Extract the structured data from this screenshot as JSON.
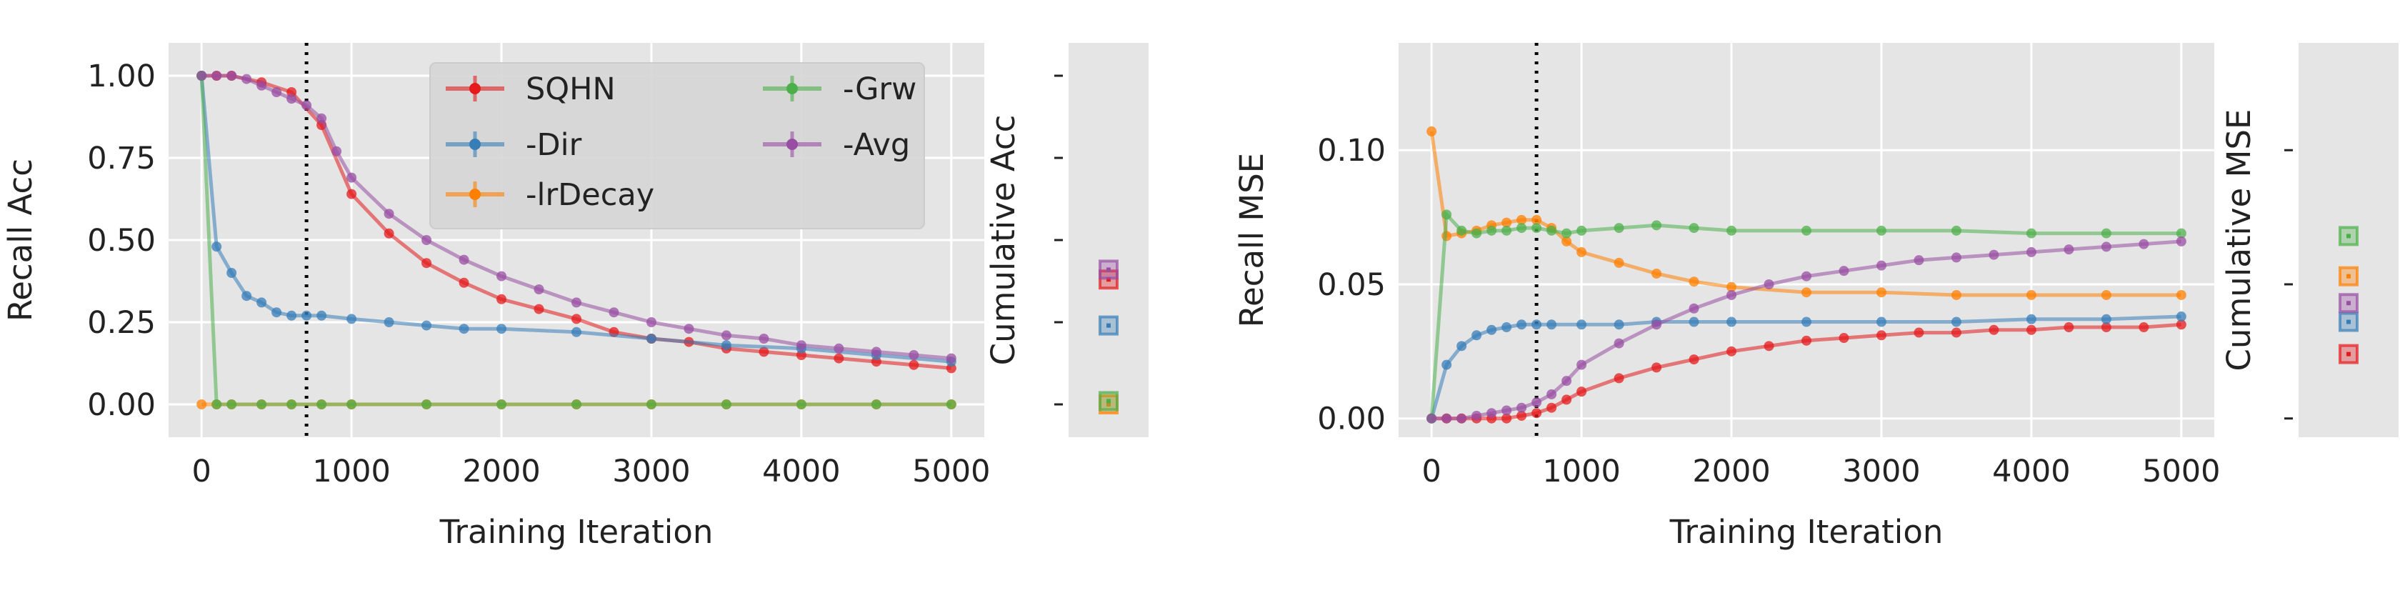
{
  "chart_data": [
    {
      "type": "line",
      "ylabel": "Recall Acc",
      "xlabel": "Training Iteration",
      "xlim": [
        -220,
        5220
      ],
      "ylim": [
        -0.1,
        1.1
      ],
      "xticks": [
        0,
        1000,
        2000,
        3000,
        4000,
        5000
      ],
      "xtick_labels": [
        "0",
        "1000",
        "2000",
        "3000",
        "4000",
        "5000"
      ],
      "yticks": [
        0.0,
        0.25,
        0.5,
        0.75,
        1.0
      ],
      "ytick_labels": [
        "0.00",
        "0.25",
        "0.50",
        "0.75",
        "1.00"
      ],
      "vline_x": 700,
      "grid": true,
      "legend": {
        "location": "top-right",
        "columns": 2
      },
      "cumulative_ylabel": "Cumulative Acc",
      "series": [
        {
          "name": "SQHN",
          "color": "#e41a1c",
          "x": [
            0,
            100,
            200,
            400,
            600,
            800,
            1000,
            1250,
            1500,
            1750,
            2000,
            2250,
            2500,
            2750,
            3000,
            3250,
            3500,
            3750,
            4000,
            4250,
            4500,
            4750,
            5000
          ],
          "values": [
            1.0,
            1.0,
            1.0,
            0.98,
            0.95,
            0.85,
            0.64,
            0.52,
            0.43,
            0.37,
            0.32,
            0.29,
            0.26,
            0.22,
            0.2,
            0.19,
            0.17,
            0.16,
            0.15,
            0.14,
            0.13,
            0.12,
            0.11
          ],
          "cumulative": 0.38
        },
        {
          "name": "-Dir",
          "color": "#377eb8",
          "x": [
            0,
            100,
            200,
            300,
            400,
            500,
            600,
            700,
            800,
            1000,
            1250,
            1500,
            1750,
            2000,
            2500,
            3000,
            3500,
            4000,
            4500,
            5000
          ],
          "values": [
            1.0,
            0.48,
            0.4,
            0.33,
            0.31,
            0.28,
            0.27,
            0.27,
            0.27,
            0.26,
            0.25,
            0.24,
            0.23,
            0.23,
            0.22,
            0.2,
            0.18,
            0.17,
            0.15,
            0.13
          ],
          "cumulative": 0.24
        },
        {
          "name": "-lrDecay",
          "color": "#ff7f00",
          "x": [
            0,
            100,
            200,
            400,
            600,
            800,
            1000,
            1500,
            2000,
            2500,
            3000,
            3500,
            4000,
            4500,
            5000
          ],
          "values": [
            0.0,
            0.0,
            0.0,
            0.0,
            0.0,
            0.0,
            0.0,
            0.0,
            0.0,
            0.0,
            0.0,
            0.0,
            0.0,
            0.0,
            0.0
          ],
          "cumulative": 0.0
        },
        {
          "name": "-Grw",
          "color": "#4daf4a",
          "x": [
            0,
            100,
            200,
            400,
            600,
            800,
            1000,
            1500,
            2000,
            2500,
            3000,
            3500,
            4000,
            4500,
            5000
          ],
          "values": [
            1.0,
            0.0,
            0.0,
            0.0,
            0.0,
            0.0,
            0.0,
            0.0,
            0.0,
            0.0,
            0.0,
            0.0,
            0.0,
            0.0,
            0.0
          ],
          "cumulative": 0.01
        },
        {
          "name": "-Avg",
          "color": "#984ea3",
          "x": [
            0,
            100,
            200,
            300,
            400,
            500,
            600,
            700,
            800,
            900,
            1000,
            1250,
            1500,
            1750,
            2000,
            2250,
            2500,
            2750,
            3000,
            3250,
            3500,
            3750,
            4000,
            4250,
            4500,
            4750,
            5000
          ],
          "values": [
            1.0,
            1.0,
            1.0,
            0.99,
            0.97,
            0.95,
            0.93,
            0.91,
            0.87,
            0.77,
            0.69,
            0.58,
            0.5,
            0.44,
            0.39,
            0.35,
            0.31,
            0.28,
            0.25,
            0.23,
            0.21,
            0.2,
            0.18,
            0.17,
            0.16,
            0.15,
            0.14
          ],
          "cumulative": 0.41
        }
      ]
    },
    {
      "type": "line",
      "ylabel": "Recall MSE",
      "xlabel": "Training Iteration",
      "xlim": [
        -220,
        5220
      ],
      "ylim": [
        -0.007,
        0.14
      ],
      "xticks": [
        0,
        1000,
        2000,
        3000,
        4000,
        5000
      ],
      "xtick_labels": [
        "0",
        "1000",
        "2000",
        "3000",
        "4000",
        "5000"
      ],
      "yticks": [
        0.0,
        0.05,
        0.1
      ],
      "ytick_labels": [
        "0.00",
        "0.05",
        "0.10"
      ],
      "vline_x": 700,
      "grid": true,
      "cumulative_ylabel": "Cumulative MSE",
      "series": [
        {
          "name": "SQHN",
          "color": "#e41a1c",
          "x": [
            0,
            100,
            200,
            300,
            400,
            500,
            600,
            700,
            800,
            900,
            1000,
            1250,
            1500,
            1750,
            2000,
            2250,
            2500,
            2750,
            3000,
            3250,
            3500,
            3750,
            4000,
            4250,
            4500,
            4750,
            5000
          ],
          "values": [
            0.0,
            0.0,
            0.0,
            0.0,
            0.0,
            0.0,
            0.001,
            0.002,
            0.004,
            0.007,
            0.01,
            0.015,
            0.019,
            0.022,
            0.025,
            0.027,
            0.029,
            0.03,
            0.031,
            0.032,
            0.032,
            0.033,
            0.033,
            0.034,
            0.034,
            0.034,
            0.035
          ],
          "cumulative": 0.024
        },
        {
          "name": "-Dir",
          "color": "#377eb8",
          "x": [
            0,
            100,
            200,
            300,
            400,
            500,
            600,
            700,
            800,
            1000,
            1250,
            1500,
            1750,
            2000,
            2500,
            3000,
            3500,
            4000,
            4500,
            5000
          ],
          "values": [
            0.0,
            0.02,
            0.027,
            0.031,
            0.033,
            0.034,
            0.035,
            0.035,
            0.035,
            0.035,
            0.035,
            0.036,
            0.036,
            0.036,
            0.036,
            0.036,
            0.036,
            0.037,
            0.037,
            0.038
          ],
          "cumulative": 0.036
        },
        {
          "name": "-lrDecay",
          "color": "#ff7f00",
          "x": [
            0,
            100,
            200,
            300,
            400,
            500,
            600,
            700,
            800,
            900,
            1000,
            1250,
            1500,
            1750,
            2000,
            2500,
            3000,
            3500,
            4000,
            4500,
            5000
          ],
          "values": [
            0.107,
            0.068,
            0.069,
            0.07,
            0.072,
            0.073,
            0.074,
            0.074,
            0.071,
            0.066,
            0.062,
            0.058,
            0.054,
            0.051,
            0.049,
            0.047,
            0.047,
            0.046,
            0.046,
            0.046,
            0.046
          ],
          "cumulative": 0.053
        },
        {
          "name": "-Grw",
          "color": "#4daf4a",
          "x": [
            0,
            100,
            200,
            300,
            400,
            500,
            600,
            700,
            800,
            900,
            1000,
            1250,
            1500,
            1750,
            2000,
            2500,
            3000,
            3500,
            4000,
            4500,
            5000
          ],
          "values": [
            0.0,
            0.076,
            0.07,
            0.069,
            0.07,
            0.07,
            0.071,
            0.071,
            0.07,
            0.069,
            0.07,
            0.071,
            0.072,
            0.071,
            0.07,
            0.07,
            0.07,
            0.07,
            0.069,
            0.069,
            0.069
          ],
          "cumulative": 0.068
        },
        {
          "name": "-Avg",
          "color": "#984ea3",
          "x": [
            0,
            100,
            200,
            300,
            400,
            500,
            600,
            700,
            800,
            900,
            1000,
            1250,
            1500,
            1750,
            2000,
            2250,
            2500,
            2750,
            3000,
            3250,
            3500,
            3750,
            4000,
            4250,
            4500,
            4750,
            5000
          ],
          "values": [
            0.0,
            0.0,
            0.0,
            0.001,
            0.002,
            0.003,
            0.004,
            0.006,
            0.009,
            0.014,
            0.02,
            0.028,
            0.035,
            0.041,
            0.046,
            0.05,
            0.053,
            0.055,
            0.057,
            0.059,
            0.06,
            0.061,
            0.062,
            0.063,
            0.064,
            0.065,
            0.066
          ],
          "cumulative": 0.043
        }
      ]
    }
  ]
}
